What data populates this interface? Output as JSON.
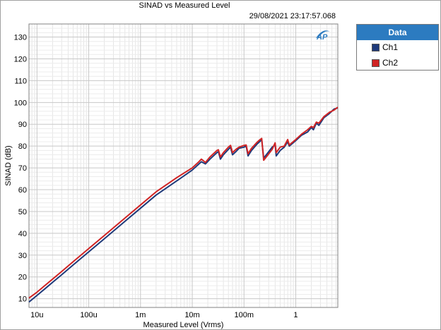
{
  "chart_data": {
    "type": "line",
    "title": "SINAD vs Measured Level",
    "timestamp": "29/08/2021 23:17:57.068",
    "xlabel": "Measured Level (Vrms)",
    "ylabel": "SINAD (dB)",
    "xscale": "log",
    "xlim": [
      7e-06,
      6.5
    ],
    "ylim": [
      6,
      136
    ],
    "x_ticks": [
      1e-05,
      0.0001,
      0.001,
      0.01,
      0.1,
      1
    ],
    "x_tick_labels": [
      "10u",
      "100u",
      "1m",
      "10m",
      "100m",
      "1"
    ],
    "y_ticks": [
      10,
      20,
      30,
      40,
      50,
      60,
      70,
      80,
      90,
      100,
      110,
      120,
      130
    ],
    "y_tick_labels": [
      "10",
      "20",
      "30",
      "40",
      "50",
      "60",
      "70",
      "80",
      "90",
      "100",
      "110",
      "120",
      "130"
    ],
    "grid": true,
    "legend_title": "Data",
    "legend_position": "top-right-outside",
    "series": [
      {
        "name": "Ch1",
        "color": "#1f3a7a",
        "points": [
          [
            7e-06,
            8.5
          ],
          [
            1e-05,
            11.5
          ],
          [
            1.5e-05,
            15
          ],
          [
            2e-05,
            17.5
          ],
          [
            3e-05,
            21
          ],
          [
            5e-05,
            25.5
          ],
          [
            0.0001,
            31.5
          ],
          [
            0.0002,
            37.5
          ],
          [
            0.0005,
            45.5
          ],
          [
            0.001,
            51.5
          ],
          [
            0.002,
            57.5
          ],
          [
            0.005,
            64
          ],
          [
            0.01,
            69
          ],
          [
            0.013,
            71.5
          ],
          [
            0.015,
            72.8
          ],
          [
            0.018,
            71.8
          ],
          [
            0.022,
            74
          ],
          [
            0.03,
            77
          ],
          [
            0.032,
            77.5
          ],
          [
            0.035,
            74
          ],
          [
            0.04,
            76
          ],
          [
            0.05,
            78.5
          ],
          [
            0.055,
            79.5
          ],
          [
            0.06,
            76
          ],
          [
            0.07,
            77.5
          ],
          [
            0.08,
            79
          ],
          [
            0.1,
            79.5
          ],
          [
            0.11,
            80
          ],
          [
            0.12,
            75.5
          ],
          [
            0.14,
            78
          ],
          [
            0.18,
            81
          ],
          [
            0.2,
            82
          ],
          [
            0.22,
            83
          ],
          [
            0.24,
            74.5
          ],
          [
            0.28,
            76.5
          ],
          [
            0.35,
            79.5
          ],
          [
            0.4,
            80.5
          ],
          [
            0.42,
            75.5
          ],
          [
            0.5,
            78
          ],
          [
            0.6,
            79.5
          ],
          [
            0.7,
            82
          ],
          [
            0.75,
            80
          ],
          [
            1.0,
            82.5
          ],
          [
            1.3,
            85
          ],
          [
            1.7,
            86.5
          ],
          [
            2.0,
            88.5
          ],
          [
            2.2,
            87.5
          ],
          [
            2.5,
            90.5
          ],
          [
            2.8,
            89.5
          ],
          [
            3.5,
            93
          ],
          [
            4.5,
            95
          ],
          [
            5.5,
            97
          ],
          [
            6.5,
            97.5
          ]
        ]
      },
      {
        "name": "Ch2",
        "color": "#d02424",
        "points": [
          [
            7e-06,
            10.3
          ],
          [
            1e-05,
            13
          ],
          [
            1.5e-05,
            16.5
          ],
          [
            2e-05,
            19
          ],
          [
            3e-05,
            22.5
          ],
          [
            5e-05,
            27
          ],
          [
            0.0001,
            33
          ],
          [
            0.0002,
            39
          ],
          [
            0.0005,
            47
          ],
          [
            0.001,
            53
          ],
          [
            0.002,
            59
          ],
          [
            0.005,
            65.5
          ],
          [
            0.01,
            70
          ],
          [
            0.013,
            72.5
          ],
          [
            0.015,
            74
          ],
          [
            0.018,
            72.5
          ],
          [
            0.022,
            75
          ],
          [
            0.03,
            78
          ],
          [
            0.032,
            78.3
          ],
          [
            0.035,
            75
          ],
          [
            0.04,
            77
          ],
          [
            0.05,
            79.5
          ],
          [
            0.055,
            80.3
          ],
          [
            0.06,
            77
          ],
          [
            0.07,
            78.5
          ],
          [
            0.08,
            79.5
          ],
          [
            0.1,
            80.3
          ],
          [
            0.11,
            80.5
          ],
          [
            0.12,
            76.5
          ],
          [
            0.14,
            79
          ],
          [
            0.18,
            81.8
          ],
          [
            0.2,
            82.8
          ],
          [
            0.22,
            83.5
          ],
          [
            0.24,
            73.5
          ],
          [
            0.28,
            75.5
          ],
          [
            0.35,
            78.5
          ],
          [
            0.4,
            81.5
          ],
          [
            0.42,
            77
          ],
          [
            0.5,
            79.5
          ],
          [
            0.6,
            80
          ],
          [
            0.7,
            83
          ],
          [
            0.75,
            80.5
          ],
          [
            1.0,
            83
          ],
          [
            1.3,
            85.5
          ],
          [
            1.7,
            87.5
          ],
          [
            2.0,
            89
          ],
          [
            2.2,
            88.5
          ],
          [
            2.5,
            91
          ],
          [
            2.8,
            90.5
          ],
          [
            3.5,
            93.5
          ],
          [
            4.5,
            95.5
          ],
          [
            5.5,
            96.5
          ],
          [
            6.5,
            97.8
          ]
        ]
      }
    ]
  }
}
